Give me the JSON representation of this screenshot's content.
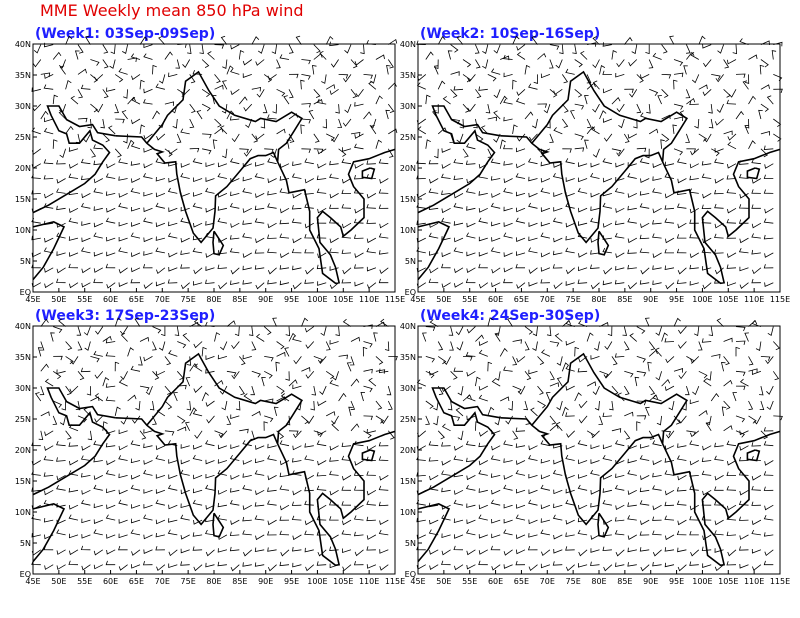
{
  "title": "MME Weekly mean 850 hPa wind",
  "panels": [
    {
      "title": "(Week1: 03Sep-09Sep)"
    },
    {
      "title": "(Week2: 10Sep-16Sep)"
    },
    {
      "title": "(Week3: 17Sep-23Sep)"
    },
    {
      "title": "(Week4: 24Sep-30Sep)"
    }
  ],
  "lat_labels": [
    "EQ",
    "5N",
    "10N",
    "15N",
    "20N",
    "25N",
    "30N",
    "35N",
    "40N"
  ],
  "lon_labels": [
    "45E",
    "50E",
    "55E",
    "60E",
    "65E",
    "70E",
    "75E",
    "80E",
    "85E",
    "90E",
    "95E",
    "100E",
    "105E",
    "110E",
    "115E"
  ]
}
